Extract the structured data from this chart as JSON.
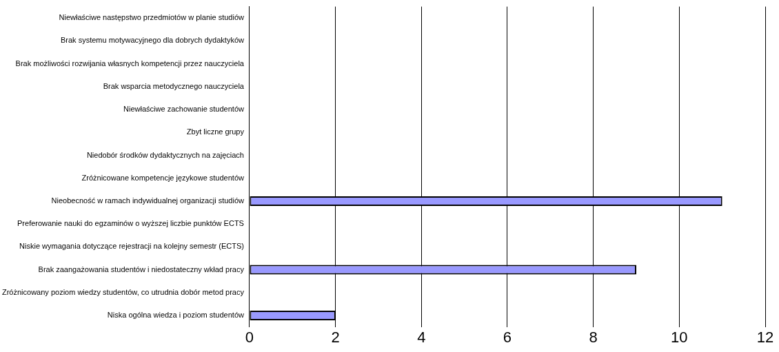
{
  "chart_data": {
    "type": "bar",
    "orientation": "horizontal",
    "categories": [
      "Niewłaściwe następstwo przedmiotów w planie studiów",
      "Brak systemu motywacyjnego dla dobrych dydaktyków",
      "Brak możliwości rozwijania własnych kompetencji przez nauczyciela",
      "Brak wsparcia metodycznego nauczyciela",
      "Niewłaściwe zachowanie studentów",
      "Zbyt liczne grupy",
      "Niedobór środków dydaktycznych na zajęciach",
      "Zróżnicowane kompetencje językowe studentów",
      "Nieobecność w ramach indywidualnej organizacji studiów",
      "Preferowanie nauki do egzaminów o wyższej liczbie punktów ECTS",
      "Niskie wymagania dotyczące rejestracji na kolejny semestr (ECTS)",
      "Brak zaangażowania studentów i niedostateczny wkład pracy",
      "Zróżnicowany poziom wiedzy studentów, co utrudnia dobór metod pracy",
      "Niska ogólna wiedza i poziom studentów"
    ],
    "values": [
      0,
      0,
      0,
      0,
      0,
      0,
      0,
      0,
      11,
      0,
      0,
      9,
      0,
      2
    ],
    "color": "#9999ff",
    "xlim": [
      0,
      12
    ],
    "xticks": [
      0,
      2,
      4,
      6,
      8,
      10,
      12
    ],
    "grid": "x",
    "legend": false
  }
}
